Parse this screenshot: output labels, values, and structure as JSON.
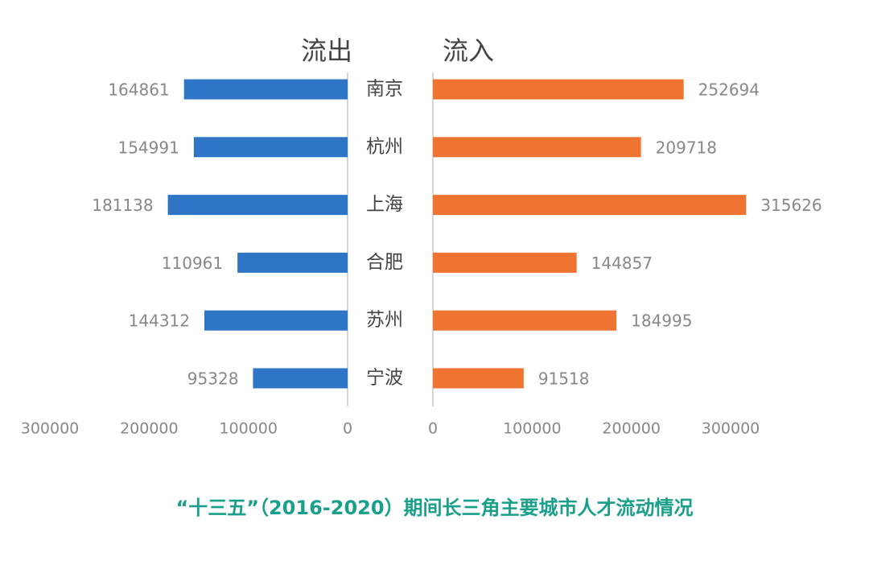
{
  "chart_data": {
    "type": "butterfly",
    "title": "“十三五”（2016-2020）期间长三角主要城市人才流动情况",
    "categories": [
      "南京",
      "杭州",
      "上海",
      "合肥",
      "苏州",
      "宁波"
    ],
    "series": [
      {
        "name": "流出",
        "color": "#2e75c6",
        "values": [
          164861,
          154991,
          181138,
          110961,
          144312,
          95328
        ]
      },
      {
        "name": "流入",
        "color": "#f07431",
        "values": [
          252694,
          209718,
          315626,
          144857,
          184995,
          91518
        ]
      }
    ],
    "xlim": [
      0,
      300000
    ],
    "xticks": [
      0,
      100000,
      200000,
      300000
    ]
  }
}
